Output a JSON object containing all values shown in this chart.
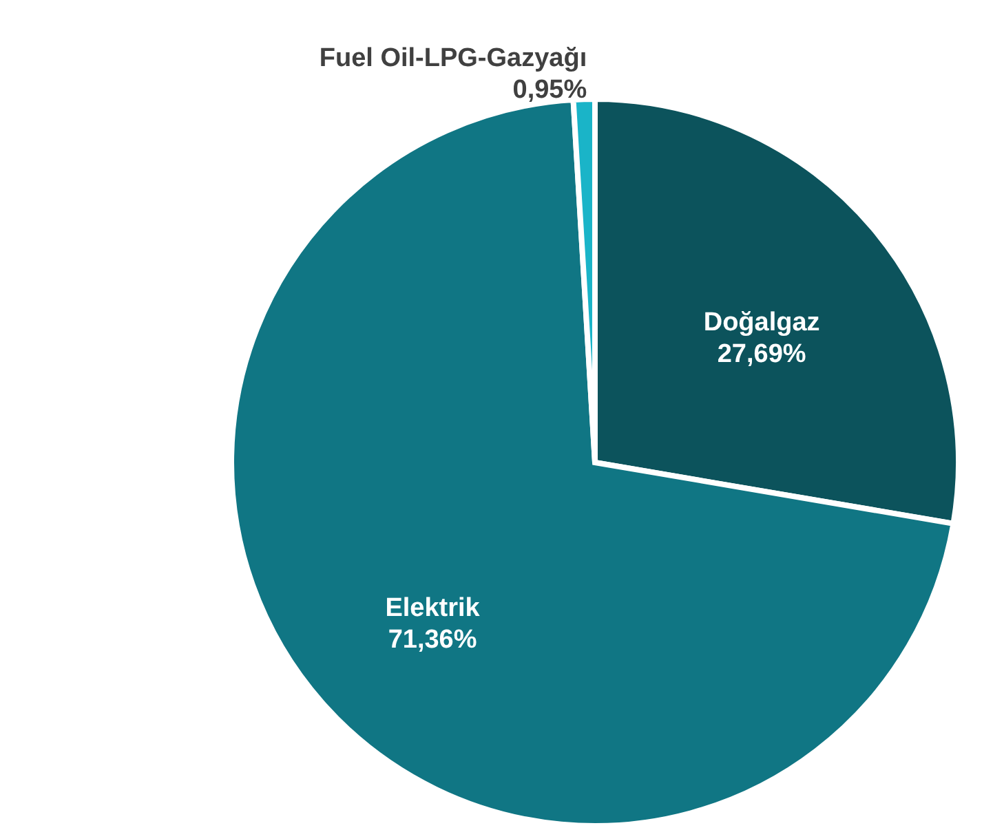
{
  "chart_data": {
    "type": "pie",
    "categories": [
      "Doğalgaz",
      "Elektrik",
      "Fuel Oil-LPG-Gazyağı"
    ],
    "values": [
      27.69,
      71.36,
      0.95
    ],
    "colors": [
      "#0c535c",
      "#107684",
      "#1ab4c8"
    ],
    "value_labels": [
      "27,69%",
      "71,36%",
      "0,95%"
    ]
  }
}
